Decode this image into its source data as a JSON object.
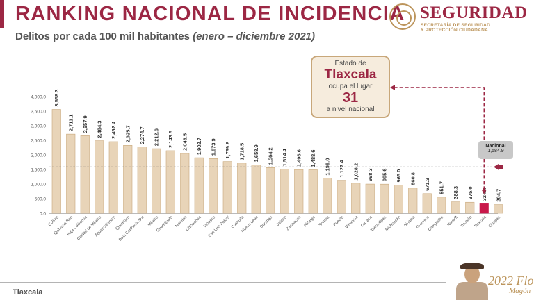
{
  "header": {
    "title": "RANKING NACIONAL DE INCIDENCIA",
    "subtitle_main": "Delitos por cada 100 mil habitantes",
    "subtitle_period": "(enero – diciembre 2021)"
  },
  "logo": {
    "name": "SEGURIDAD",
    "sub_line1": "SECRETARÍA DE SEGURIDAD",
    "sub_line2": "Y PROTECCIÓN CIUDADANA"
  },
  "callout": {
    "line1": "Estado de",
    "state": "Tlaxcala",
    "line3": "ocupa el lugar",
    "rank": "31",
    "line5": "a nivel nacional"
  },
  "nacional": {
    "label": "Nacional",
    "value": "1,584.9"
  },
  "footer": {
    "state": "Tlaxcala"
  },
  "branding": {
    "year": "2022",
    "name_1": "Flores",
    "name_2": "Magón"
  },
  "colors": {
    "bar": "#e8d4b8",
    "bar_stroke": "#c8a77a",
    "highlight": "#c9184a",
    "accent": "#9c2744"
  },
  "chart_data": {
    "type": "bar",
    "categories": [
      "Colima",
      "Quintana Roo",
      "Baja California",
      "Ciudad de México",
      "Aguascalientes",
      "Querétaro",
      "Baja California Sur",
      "México",
      "Guanajuato",
      "Morelos",
      "Chihuahua",
      "Tabasco",
      "San Luis Potosí",
      "Coahuila",
      "Nuevo León",
      "Durango",
      "Jalisco",
      "Zacatecas",
      "Hidalgo",
      "Sonora",
      "Puebla",
      "Veracruz",
      "Oaxaca",
      "Tamaulipas",
      "Michoacán",
      "Sinaloa",
      "Guerrero",
      "Campeche",
      "Nayarit",
      "Yucatán",
      "Tlaxcala",
      "Chiapas"
    ],
    "values": [
      3558.3,
      2711.1,
      2657.9,
      2484.3,
      2452.4,
      2325.7,
      2274.7,
      2212.6,
      2143.5,
      2048.5,
      1902.7,
      1873.9,
      1769.8,
      1718.5,
      1658.9,
      1564.2,
      1514.4,
      1496.6,
      1488.6,
      1199.0,
      1127.4,
      1028.2,
      998.3,
      995.6,
      965.0,
      860.8,
      671.3,
      551.7,
      388.3,
      375.0,
      324.4,
      294.7
    ],
    "value_labels": [
      "3,558.3",
      "2,711.1",
      "2,657.9",
      "2,484.3",
      "2,452.4",
      "2,325.7",
      "2,274.7",
      "2,212.6",
      "2,143.5",
      "2,048.5",
      "1,902.7",
      "1,873.9",
      "1,769.8",
      "1,718.5",
      "1,658.9",
      "1,564.2",
      "1,514.4",
      "1,496.6",
      "1,488.6",
      "1,199.0",
      "1,127.4",
      "1,028.2",
      "998.3",
      "995.6",
      "965.0",
      "860.8",
      "671.3",
      "551.7",
      "388.3",
      "375.0",
      "324.4",
      "294.7"
    ],
    "yticks": [
      0,
      500,
      1000,
      1500,
      2000,
      2500,
      3000,
      3500,
      4000
    ],
    "ytick_labels": [
      "0.0",
      "500.0",
      "1,000.0",
      "1,500.0",
      "2,000.0",
      "2,500.0",
      "3,000.0",
      "3,500.0",
      "4,000.0"
    ],
    "ylim": [
      0,
      4000
    ],
    "reference_line": 1584.9,
    "highlight_category": "Tlaxcala",
    "grid": false
  }
}
